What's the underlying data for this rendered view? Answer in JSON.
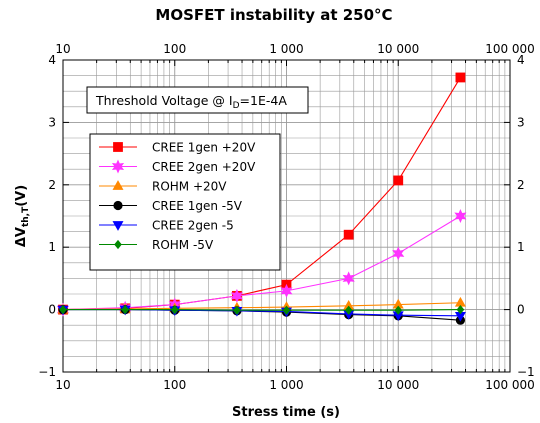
{
  "chart_data": {
    "type": "line",
    "title": "MOSFET instability at 250°C",
    "xlabel": "Stress time (s)",
    "ylabel_main": "ΔV",
    "ylabel_sub": "th,T",
    "ylabel_suffix": "(V)",
    "xscale": "log",
    "xlim": [
      10,
      100000
    ],
    "ylim": [
      -1,
      4
    ],
    "x_ticks": [
      10,
      100,
      1000,
      10000,
      100000
    ],
    "x_tick_labels": [
      "10",
      "100",
      "1 000",
      "10 000",
      "100 000"
    ],
    "y_ticks": [
      -1,
      0,
      1,
      2,
      3,
      4
    ],
    "y_tick_labels": [
      "−1",
      "0",
      "1",
      "2",
      "3",
      "4"
    ],
    "grid": true,
    "legend_position": "upper-left",
    "annotation": {
      "prefix": "Threshold Voltage @ I",
      "sub": "D",
      "suffix": "=1E-4A"
    },
    "x": [
      10,
      36,
      100,
      360,
      1000,
      3600,
      10000,
      36000
    ],
    "series": [
      {
        "name": "CREE 1gen +20V",
        "color": "#ff0000",
        "marker": "square",
        "values": [
          0,
          0.02,
          0.08,
          0.22,
          0.4,
          1.2,
          2.07,
          3.72
        ]
      },
      {
        "name": "CREE 2gen +20V",
        "color": "#ff33ff",
        "marker": "star",
        "values": [
          0,
          0.03,
          0.08,
          0.22,
          0.3,
          0.5,
          0.9,
          1.5
        ]
      },
      {
        "name": "ROHM +20V",
        "color": "#ff8800",
        "marker": "triangle-up",
        "values": [
          0,
          0.01,
          0.02,
          0.03,
          0.04,
          0.06,
          0.08,
          0.11
        ]
      },
      {
        "name": "CREE 1gen -5V",
        "color": "#000000",
        "marker": "circle",
        "values": [
          0,
          0,
          -0.01,
          -0.02,
          -0.04,
          -0.08,
          -0.1,
          -0.17
        ]
      },
      {
        "name": "CREE 2gen -5",
        "color": "#0000ff",
        "marker": "triangle-down",
        "values": [
          0,
          0,
          -0.01,
          -0.02,
          -0.03,
          -0.07,
          -0.09,
          -0.1
        ]
      },
      {
        "name": "ROHM -5V",
        "color": "#008800",
        "marker": "diamond",
        "values": [
          0,
          0,
          0,
          -0.01,
          -0.01,
          -0.01,
          -0.01,
          0
        ]
      }
    ]
  }
}
